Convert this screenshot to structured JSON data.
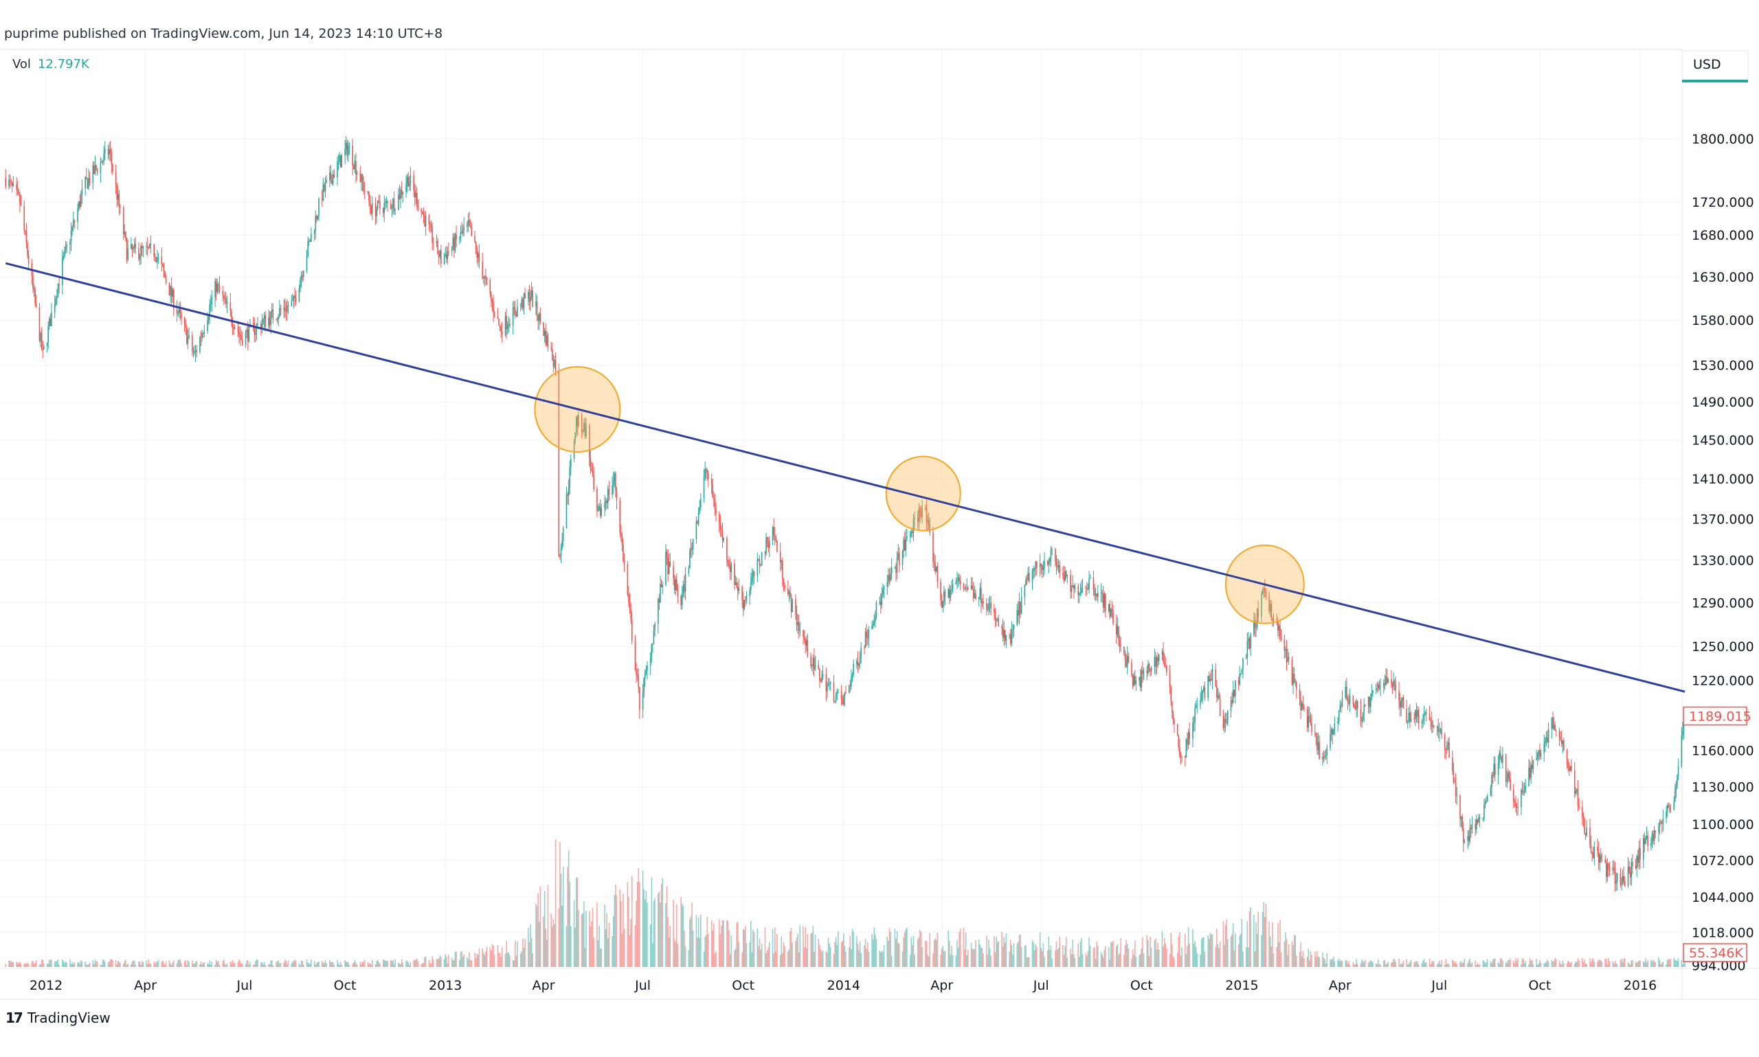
{
  "header": {
    "published": "puprime published on TradingView.com, Jun 14, 2023 14:10 UTC+8"
  },
  "volume_legend": {
    "label": "Vol",
    "value": "12.797K"
  },
  "footer": {
    "brand": "TradingView",
    "logo": "TV"
  },
  "price_axis": {
    "currency": "USD"
  },
  "colors": {
    "up": "#26a69a",
    "down": "#ef5350",
    "trendline": "#2e3f9c",
    "highlight": "#f5a623"
  },
  "chart_data": {
    "type": "candlestick",
    "yscale": "log",
    "ylim": [
      994,
      1830
    ],
    "xlim": [
      "2011-11-25",
      "2016-02-12"
    ],
    "grid": true,
    "y_ticks": [
      "1800.000",
      "1720.000",
      "1680.000",
      "1630.000",
      "1580.000",
      "1530.000",
      "1490.000",
      "1450.000",
      "1410.000",
      "1370.000",
      "1330.000",
      "1290.000",
      "1250.000",
      "1220.000",
      "1160.000",
      "1130.000",
      "1100.000",
      "1072.000",
      "1044.000",
      "1018.000",
      "994.000"
    ],
    "x_ticks": [
      {
        "date": "2012-01-01",
        "label": "2012"
      },
      {
        "date": "2012-04-01",
        "label": "Apr"
      },
      {
        "date": "2012-07-01",
        "label": "Jul"
      },
      {
        "date": "2012-10-01",
        "label": "Oct"
      },
      {
        "date": "2013-01-01",
        "label": "2013"
      },
      {
        "date": "2013-04-01",
        "label": "Apr"
      },
      {
        "date": "2013-07-01",
        "label": "Jul"
      },
      {
        "date": "2013-10-01",
        "label": "Oct"
      },
      {
        "date": "2014-01-01",
        "label": "2014"
      },
      {
        "date": "2014-04-01",
        "label": "Apr"
      },
      {
        "date": "2014-07-01",
        "label": "Jul"
      },
      {
        "date": "2014-10-01",
        "label": "Oct"
      },
      {
        "date": "2015-01-01",
        "label": "2015"
      },
      {
        "date": "2015-04-01",
        "label": "Apr"
      },
      {
        "date": "2015-07-01",
        "label": "Jul"
      },
      {
        "date": "2015-10-01",
        "label": "Oct"
      },
      {
        "date": "2016-01-01",
        "label": "2016"
      }
    ],
    "last_price": "1189.015",
    "last_volume": "55.346K",
    "price_path": [
      [
        "2011-11-25",
        1750
      ],
      [
        "2011-12-08",
        1720
      ],
      [
        "2011-12-29",
        1540
      ],
      [
        "2012-01-15",
        1640
      ],
      [
        "2012-02-05",
        1740
      ],
      [
        "2012-02-28",
        1785
      ],
      [
        "2012-03-15",
        1660
      ],
      [
        "2012-04-10",
        1660
      ],
      [
        "2012-05-16",
        1540
      ],
      [
        "2012-06-05",
        1620
      ],
      [
        "2012-06-28",
        1560
      ],
      [
        "2012-07-20",
        1580
      ],
      [
        "2012-08-15",
        1600
      ],
      [
        "2012-09-10",
        1730
      ],
      [
        "2012-10-04",
        1790
      ],
      [
        "2012-10-26",
        1710
      ],
      [
        "2012-11-16",
        1720
      ],
      [
        "2012-11-28",
        1750
      ],
      [
        "2012-12-28",
        1650
      ],
      [
        "2013-01-22",
        1690
      ],
      [
        "2013-02-20",
        1570
      ],
      [
        "2013-03-20",
        1610
      ],
      [
        "2013-04-12",
        1530
      ],
      [
        "2013-04-15",
        1330
      ],
      [
        "2013-05-01",
        1470
      ],
      [
        "2013-05-10",
        1460
      ],
      [
        "2013-05-20",
        1370
      ],
      [
        "2013-06-05",
        1410
      ],
      [
        "2013-06-28",
        1200
      ],
      [
        "2013-07-05",
        1230
      ],
      [
        "2013-07-22",
        1330
      ],
      [
        "2013-08-05",
        1290
      ],
      [
        "2013-08-28",
        1420
      ],
      [
        "2013-09-10",
        1360
      ],
      [
        "2013-09-20",
        1320
      ],
      [
        "2013-10-01",
        1290
      ],
      [
        "2013-10-28",
        1360
      ],
      [
        "2013-11-10",
        1300
      ],
      [
        "2013-12-05",
        1230
      ],
      [
        "2013-12-31",
        1200
      ],
      [
        "2014-01-25",
        1270
      ],
      [
        "2014-02-20",
        1330
      ],
      [
        "2014-03-15",
        1385
      ],
      [
        "2014-04-01",
        1290
      ],
      [
        "2014-04-15",
        1310
      ],
      [
        "2014-05-10",
        1295
      ],
      [
        "2014-06-01",
        1250
      ],
      [
        "2014-06-20",
        1315
      ],
      [
        "2014-07-10",
        1335
      ],
      [
        "2014-07-30",
        1300
      ],
      [
        "2014-08-15",
        1310
      ],
      [
        "2014-09-01",
        1285
      ],
      [
        "2014-09-25",
        1215
      ],
      [
        "2014-10-20",
        1245
      ],
      [
        "2014-11-07",
        1150
      ],
      [
        "2014-11-20",
        1195
      ],
      [
        "2014-12-05",
        1225
      ],
      [
        "2014-12-15",
        1180
      ],
      [
        "2015-01-22",
        1300
      ],
      [
        "2015-02-05",
        1260
      ],
      [
        "2015-02-20",
        1210
      ],
      [
        "2015-03-17",
        1150
      ],
      [
        "2015-04-05",
        1210
      ],
      [
        "2015-04-20",
        1190
      ],
      [
        "2015-05-15",
        1225
      ],
      [
        "2015-06-01",
        1190
      ],
      [
        "2015-06-20",
        1190
      ],
      [
        "2015-07-10",
        1160
      ],
      [
        "2015-07-24",
        1085
      ],
      [
        "2015-08-10",
        1110
      ],
      [
        "2015-08-25",
        1160
      ],
      [
        "2015-09-10",
        1110
      ],
      [
        "2015-09-20",
        1140
      ],
      [
        "2015-10-14",
        1185
      ],
      [
        "2015-10-28",
        1150
      ],
      [
        "2015-11-15",
        1085
      ],
      [
        "2015-12-01",
        1065
      ],
      [
        "2015-12-17",
        1055
      ],
      [
        "2016-01-05",
        1085
      ],
      [
        "2016-01-20",
        1100
      ],
      [
        "2016-02-01",
        1120
      ],
      [
        "2016-02-11",
        1190
      ]
    ],
    "volume_path_k": [
      [
        "2011-11-25",
        40
      ],
      [
        "2012-12-01",
        40
      ],
      [
        "2013-01-15",
        90
      ],
      [
        "2013-03-15",
        150
      ],
      [
        "2013-04-15",
        740
      ],
      [
        "2013-05-15",
        300
      ],
      [
        "2013-06-28",
        550
      ],
      [
        "2013-09-01",
        260
      ],
      [
        "2014-01-01",
        200
      ],
      [
        "2014-06-01",
        200
      ],
      [
        "2014-09-01",
        140
      ],
      [
        "2014-11-07",
        200
      ],
      [
        "2015-01-22",
        330
      ],
      [
        "2015-03-01",
        120
      ],
      [
        "2015-04-01",
        40
      ],
      [
        "2016-02-11",
        50
      ]
    ],
    "trendline": [
      [
        "2011-11-25",
        1646
      ],
      [
        "2016-02-11",
        1210
      ]
    ],
    "highlights": [
      {
        "date": "2013-05-02",
        "price": 1482
      },
      {
        "date": "2014-03-15",
        "price": 1395
      },
      {
        "date": "2015-01-22",
        "price": 1307
      }
    ]
  }
}
